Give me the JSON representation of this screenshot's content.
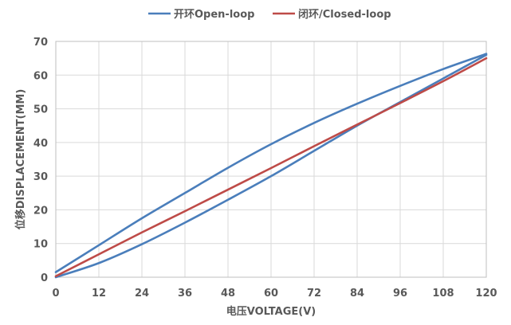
{
  "chart_data": {
    "type": "line",
    "title": "",
    "xlabel": "电压VOLTAGE(V)",
    "ylabel": "位移DISPLACEMENT(MM)",
    "xlim": [
      0,
      120
    ],
    "ylim": [
      0,
      70
    ],
    "xticks": [
      0,
      12,
      24,
      36,
      48,
      60,
      72,
      84,
      96,
      108,
      120
    ],
    "yticks": [
      0,
      10,
      20,
      30,
      40,
      50,
      60,
      70
    ],
    "grid": true,
    "legend_position": "top-center",
    "series": [
      {
        "name": "开环Open-loop",
        "color": "#4a7ebb",
        "branch": "upper",
        "x": [
          0,
          12,
          24,
          36,
          48,
          60,
          72,
          84,
          96,
          108,
          120
        ],
        "y": [
          1.5,
          9.5,
          17.5,
          25.0,
          32.5,
          39.5,
          45.8,
          51.5,
          56.8,
          61.8,
          66.3
        ]
      },
      {
        "name": "开环Open-loop",
        "color": "#4a7ebb",
        "branch": "lower",
        "x": [
          0,
          12,
          24,
          36,
          48,
          60,
          72,
          84,
          96,
          108,
          120
        ],
        "y": [
          0,
          4.2,
          9.8,
          16.2,
          23.0,
          30.0,
          37.5,
          45.0,
          52.0,
          59.0,
          66.0
        ]
      },
      {
        "name": "闭环/Closed-loop",
        "color": "#be4b48",
        "x": [
          0,
          12,
          24,
          36,
          48,
          60,
          72,
          84,
          96,
          108,
          120
        ],
        "y": [
          0.3,
          6.8,
          13.3,
          19.6,
          26.0,
          32.4,
          38.9,
          45.3,
          51.7,
          58.2,
          65.0
        ]
      }
    ],
    "legend": [
      {
        "label": "开环Open-loop",
        "color": "#4a7ebb"
      },
      {
        "label": "闭环/Closed-loop",
        "color": "#be4b48"
      }
    ]
  }
}
